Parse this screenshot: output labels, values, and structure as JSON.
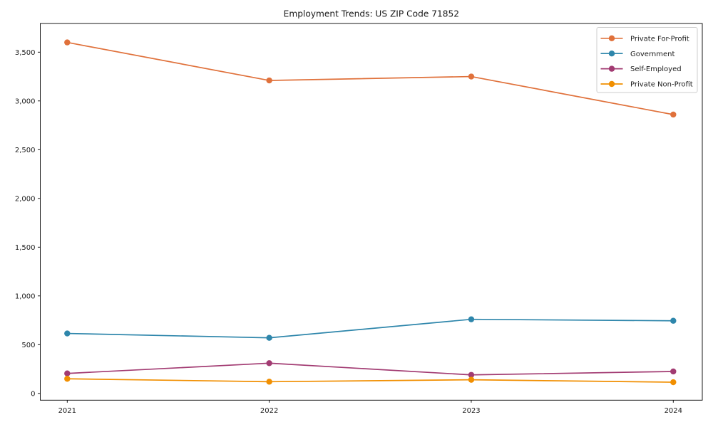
{
  "chart_data": {
    "type": "line",
    "title": "Employment Trends: US ZIP Code 71852",
    "x": [
      2021,
      2022,
      2023,
      2024
    ],
    "xtick_labels": [
      "2021",
      "2022",
      "2023",
      "2024"
    ],
    "series": [
      {
        "name": "Private For-Profit",
        "color": "#e0713b",
        "values": [
          3600,
          3210,
          3250,
          2860
        ]
      },
      {
        "name": "Government",
        "color": "#2e86ab",
        "values": [
          615,
          570,
          760,
          745
        ]
      },
      {
        "name": "Self-Employed",
        "color": "#a23b72",
        "values": [
          205,
          310,
          190,
          225
        ]
      },
      {
        "name": "Private Non-Profit",
        "color": "#f18f01",
        "values": [
          150,
          120,
          140,
          115
        ]
      }
    ],
    "yticks": [
      0,
      500,
      1000,
      1500,
      2000,
      2500,
      3000,
      3500
    ],
    "ytick_labels": [
      "0",
      "500",
      "1,000",
      "1,500",
      "2,000",
      "2,500",
      "3,000",
      "3,500"
    ],
    "ylim": [
      -70,
      3795
    ],
    "grid": false,
    "marker": "o",
    "legend_position": "upper right"
  },
  "style": {
    "background": "#ffffff",
    "spine_color": "#000000",
    "tick_color": "#262626",
    "text_color": "#1a1a1a",
    "legend_border": "#cccccc",
    "legend_background": "#ffffff"
  }
}
